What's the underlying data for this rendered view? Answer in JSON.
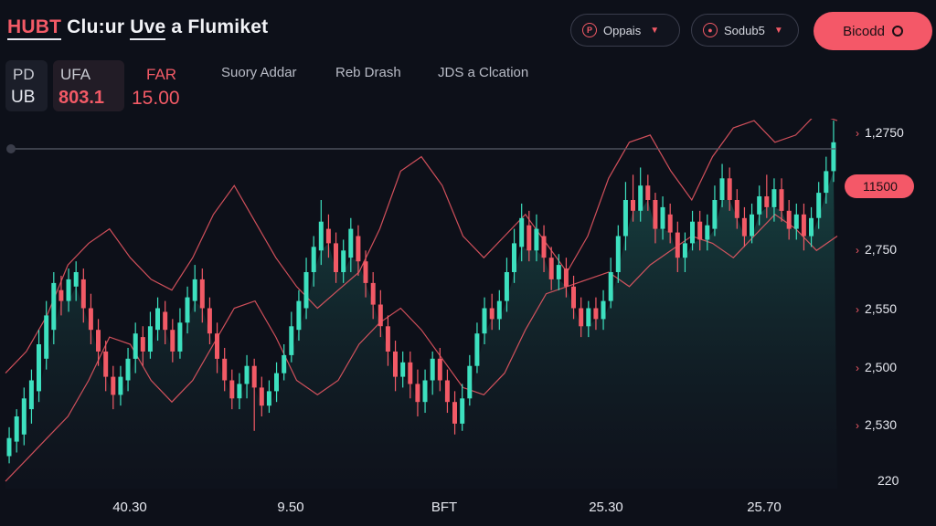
{
  "header": {
    "title_parts": [
      "HUBT",
      "Clu:ur",
      "Uve",
      "a Flumiket"
    ],
    "dropdown1": {
      "label": "Oppais",
      "icon": "p-coin-icon"
    },
    "dropdown2": {
      "label": "Sodub5",
      "icon": "target-icon"
    },
    "primary_button": {
      "label": "Bicodd"
    }
  },
  "stats": [
    {
      "label": "PD",
      "value": "UB"
    },
    {
      "label": "UFA",
      "value": "803.1"
    },
    {
      "label": "FAR",
      "value": "15.00"
    }
  ],
  "tabs": [
    "Suory Addar",
    "Reb Drash",
    "JDS a Clcation"
  ],
  "colors": {
    "background": "#0d1019",
    "accent": "#f45868",
    "up": "#3de0bf",
    "down": "#f25a66"
  },
  "chart_data": {
    "type": "candlestick",
    "title": "",
    "y_tick_labels": [
      "1,2750",
      "11500",
      "2,750",
      "2,550",
      "2,500",
      "2,530",
      "220"
    ],
    "current_price_label": "11500",
    "x_tick_labels": [
      "40.30",
      "9.50",
      "BFT",
      "25.30",
      "25.70"
    ],
    "grid": false,
    "candles": [
      {
        "o": 0.09,
        "c": 0.14,
        "h": 0.17,
        "l": 0.07
      },
      {
        "o": 0.13,
        "c": 0.2,
        "h": 0.22,
        "l": 0.1
      },
      {
        "o": 0.15,
        "c": 0.25,
        "h": 0.28,
        "l": 0.12
      },
      {
        "o": 0.22,
        "c": 0.3,
        "h": 0.33,
        "l": 0.18
      },
      {
        "o": 0.27,
        "c": 0.4,
        "h": 0.44,
        "l": 0.24
      },
      {
        "o": 0.36,
        "c": 0.48,
        "h": 0.52,
        "l": 0.33
      },
      {
        "o": 0.44,
        "c": 0.57,
        "h": 0.6,
        "l": 0.4
      },
      {
        "o": 0.55,
        "c": 0.52,
        "h": 0.59,
        "l": 0.48
      },
      {
        "o": 0.52,
        "c": 0.58,
        "h": 0.61,
        "l": 0.49
      },
      {
        "o": 0.56,
        "c": 0.6,
        "h": 0.63,
        "l": 0.52
      },
      {
        "o": 0.58,
        "c": 0.5,
        "h": 0.61,
        "l": 0.46
      },
      {
        "o": 0.5,
        "c": 0.44,
        "h": 0.54,
        "l": 0.4
      },
      {
        "o": 0.44,
        "c": 0.38,
        "h": 0.47,
        "l": 0.34
      },
      {
        "o": 0.38,
        "c": 0.31,
        "h": 0.41,
        "l": 0.27
      },
      {
        "o": 0.31,
        "c": 0.26,
        "h": 0.34,
        "l": 0.22
      },
      {
        "o": 0.26,
        "c": 0.31,
        "h": 0.34,
        "l": 0.23
      },
      {
        "o": 0.3,
        "c": 0.36,
        "h": 0.39,
        "l": 0.27
      },
      {
        "o": 0.36,
        "c": 0.43,
        "h": 0.46,
        "l": 0.32
      },
      {
        "o": 0.42,
        "c": 0.38,
        "h": 0.45,
        "l": 0.34
      },
      {
        "o": 0.38,
        "c": 0.45,
        "h": 0.49,
        "l": 0.36
      },
      {
        "o": 0.44,
        "c": 0.5,
        "h": 0.53,
        "l": 0.41
      },
      {
        "o": 0.49,
        "c": 0.44,
        "h": 0.52,
        "l": 0.4
      },
      {
        "o": 0.44,
        "c": 0.38,
        "h": 0.47,
        "l": 0.35
      },
      {
        "o": 0.38,
        "c": 0.46,
        "h": 0.5,
        "l": 0.36
      },
      {
        "o": 0.46,
        "c": 0.53,
        "h": 0.56,
        "l": 0.43
      },
      {
        "o": 0.52,
        "c": 0.58,
        "h": 0.62,
        "l": 0.49
      },
      {
        "o": 0.58,
        "c": 0.5,
        "h": 0.61,
        "l": 0.46
      },
      {
        "o": 0.5,
        "c": 0.43,
        "h": 0.53,
        "l": 0.4
      },
      {
        "o": 0.43,
        "c": 0.36,
        "h": 0.46,
        "l": 0.32
      },
      {
        "o": 0.36,
        "c": 0.3,
        "h": 0.39,
        "l": 0.27
      },
      {
        "o": 0.3,
        "c": 0.25,
        "h": 0.33,
        "l": 0.22
      },
      {
        "o": 0.25,
        "c": 0.29,
        "h": 0.32,
        "l": 0.22
      },
      {
        "o": 0.29,
        "c": 0.34,
        "h": 0.37,
        "l": 0.25
      },
      {
        "o": 0.34,
        "c": 0.28,
        "h": 0.36,
        "l": 0.16
      },
      {
        "o": 0.28,
        "c": 0.23,
        "h": 0.31,
        "l": 0.2
      },
      {
        "o": 0.23,
        "c": 0.27,
        "h": 0.3,
        "l": 0.21
      },
      {
        "o": 0.27,
        "c": 0.32,
        "h": 0.35,
        "l": 0.24
      },
      {
        "o": 0.32,
        "c": 0.37,
        "h": 0.4,
        "l": 0.3
      },
      {
        "o": 0.37,
        "c": 0.45,
        "h": 0.49,
        "l": 0.35
      },
      {
        "o": 0.44,
        "c": 0.52,
        "h": 0.55,
        "l": 0.41
      },
      {
        "o": 0.5,
        "c": 0.6,
        "h": 0.64,
        "l": 0.47
      },
      {
        "o": 0.6,
        "c": 0.67,
        "h": 0.7,
        "l": 0.56
      },
      {
        "o": 0.66,
        "c": 0.74,
        "h": 0.8,
        "l": 0.62
      },
      {
        "o": 0.72,
        "c": 0.68,
        "h": 0.76,
        "l": 0.64
      },
      {
        "o": 0.68,
        "c": 0.6,
        "h": 0.71,
        "l": 0.57
      },
      {
        "o": 0.6,
        "c": 0.66,
        "h": 0.69,
        "l": 0.57
      },
      {
        "o": 0.64,
        "c": 0.72,
        "h": 0.75,
        "l": 0.6
      },
      {
        "o": 0.7,
        "c": 0.63,
        "h": 0.73,
        "l": 0.59
      },
      {
        "o": 0.63,
        "c": 0.57,
        "h": 0.66,
        "l": 0.53
      },
      {
        "o": 0.57,
        "c": 0.51,
        "h": 0.6,
        "l": 0.47
      },
      {
        "o": 0.51,
        "c": 0.45,
        "h": 0.55,
        "l": 0.42
      },
      {
        "o": 0.45,
        "c": 0.38,
        "h": 0.48,
        "l": 0.34
      },
      {
        "o": 0.38,
        "c": 0.31,
        "h": 0.41,
        "l": 0.27
      },
      {
        "o": 0.31,
        "c": 0.35,
        "h": 0.38,
        "l": 0.28
      },
      {
        "o": 0.35,
        "c": 0.29,
        "h": 0.38,
        "l": 0.25
      },
      {
        "o": 0.29,
        "c": 0.24,
        "h": 0.33,
        "l": 0.2
      },
      {
        "o": 0.24,
        "c": 0.3,
        "h": 0.33,
        "l": 0.21
      },
      {
        "o": 0.3,
        "c": 0.36,
        "h": 0.38,
        "l": 0.26
      },
      {
        "o": 0.36,
        "c": 0.3,
        "h": 0.39,
        "l": 0.27
      },
      {
        "o": 0.3,
        "c": 0.24,
        "h": 0.33,
        "l": 0.21
      },
      {
        "o": 0.24,
        "c": 0.18,
        "h": 0.27,
        "l": 0.15
      },
      {
        "o": 0.18,
        "c": 0.25,
        "h": 0.29,
        "l": 0.16
      },
      {
        "o": 0.25,
        "c": 0.34,
        "h": 0.37,
        "l": 0.23
      },
      {
        "o": 0.34,
        "c": 0.43,
        "h": 0.46,
        "l": 0.32
      },
      {
        "o": 0.43,
        "c": 0.5,
        "h": 0.53,
        "l": 0.4
      },
      {
        "o": 0.5,
        "c": 0.47,
        "h": 0.54,
        "l": 0.44
      },
      {
        "o": 0.47,
        "c": 0.52,
        "h": 0.55,
        "l": 0.44
      },
      {
        "o": 0.52,
        "c": 0.6,
        "h": 0.64,
        "l": 0.49
      },
      {
        "o": 0.6,
        "c": 0.68,
        "h": 0.72,
        "l": 0.57
      },
      {
        "o": 0.67,
        "c": 0.75,
        "h": 0.79,
        "l": 0.63
      },
      {
        "o": 0.73,
        "c": 0.66,
        "h": 0.77,
        "l": 0.63
      },
      {
        "o": 0.66,
        "c": 0.72,
        "h": 0.76,
        "l": 0.63
      },
      {
        "o": 0.7,
        "c": 0.64,
        "h": 0.73,
        "l": 0.6
      },
      {
        "o": 0.64,
        "c": 0.58,
        "h": 0.67,
        "l": 0.55
      },
      {
        "o": 0.58,
        "c": 0.62,
        "h": 0.65,
        "l": 0.55
      },
      {
        "o": 0.61,
        "c": 0.56,
        "h": 0.64,
        "l": 0.53
      },
      {
        "o": 0.56,
        "c": 0.5,
        "h": 0.59,
        "l": 0.47
      },
      {
        "o": 0.5,
        "c": 0.45,
        "h": 0.53,
        "l": 0.42
      },
      {
        "o": 0.45,
        "c": 0.5,
        "h": 0.52,
        "l": 0.42
      },
      {
        "o": 0.5,
        "c": 0.47,
        "h": 0.53,
        "l": 0.44
      },
      {
        "o": 0.47,
        "c": 0.52,
        "h": 0.55,
        "l": 0.44
      },
      {
        "o": 0.52,
        "c": 0.6,
        "h": 0.64,
        "l": 0.5
      },
      {
        "o": 0.6,
        "c": 0.7,
        "h": 0.73,
        "l": 0.57
      },
      {
        "o": 0.7,
        "c": 0.8,
        "h": 0.85,
        "l": 0.66
      },
      {
        "o": 0.8,
        "c": 0.77,
        "h": 0.87,
        "l": 0.74
      },
      {
        "o": 0.77,
        "c": 0.84,
        "h": 0.89,
        "l": 0.74
      },
      {
        "o": 0.84,
        "c": 0.8,
        "h": 0.87,
        "l": 0.77
      },
      {
        "o": 0.8,
        "c": 0.72,
        "h": 0.82,
        "l": 0.68
      },
      {
        "o": 0.72,
        "c": 0.78,
        "h": 0.81,
        "l": 0.69
      },
      {
        "o": 0.76,
        "c": 0.71,
        "h": 0.79,
        "l": 0.68
      },
      {
        "o": 0.71,
        "c": 0.64,
        "h": 0.74,
        "l": 0.6
      },
      {
        "o": 0.64,
        "c": 0.68,
        "h": 0.71,
        "l": 0.6
      },
      {
        "o": 0.68,
        "c": 0.74,
        "h": 0.77,
        "l": 0.66
      },
      {
        "o": 0.74,
        "c": 0.69,
        "h": 0.77,
        "l": 0.66
      },
      {
        "o": 0.69,
        "c": 0.73,
        "h": 0.76,
        "l": 0.66
      },
      {
        "o": 0.72,
        "c": 0.8,
        "h": 0.84,
        "l": 0.7
      },
      {
        "o": 0.8,
        "c": 0.86,
        "h": 0.9,
        "l": 0.78
      },
      {
        "o": 0.86,
        "c": 0.8,
        "h": 0.89,
        "l": 0.77
      },
      {
        "o": 0.8,
        "c": 0.75,
        "h": 0.83,
        "l": 0.72
      },
      {
        "o": 0.75,
        "c": 0.7,
        "h": 0.78,
        "l": 0.67
      },
      {
        "o": 0.7,
        "c": 0.76,
        "h": 0.79,
        "l": 0.68
      },
      {
        "o": 0.76,
        "c": 0.81,
        "h": 0.84,
        "l": 0.73
      },
      {
        "o": 0.81,
        "c": 0.78,
        "h": 0.87,
        "l": 0.75
      },
      {
        "o": 0.78,
        "c": 0.83,
        "h": 0.86,
        "l": 0.74
      },
      {
        "o": 0.83,
        "c": 0.77,
        "h": 0.86,
        "l": 0.74
      },
      {
        "o": 0.77,
        "c": 0.72,
        "h": 0.8,
        "l": 0.69
      },
      {
        "o": 0.72,
        "c": 0.76,
        "h": 0.79,
        "l": 0.69
      },
      {
        "o": 0.76,
        "c": 0.7,
        "h": 0.79,
        "l": 0.66
      },
      {
        "o": 0.7,
        "c": 0.75,
        "h": 0.78,
        "l": 0.67
      },
      {
        "o": 0.75,
        "c": 0.82,
        "h": 0.85,
        "l": 0.72
      },
      {
        "o": 0.82,
        "c": 0.88,
        "h": 0.92,
        "l": 0.79
      },
      {
        "o": 0.88,
        "c": 0.96,
        "h": 1.02,
        "l": 0.85
      }
    ],
    "upper_band": [
      0.32,
      0.38,
      0.48,
      0.62,
      0.68,
      0.72,
      0.64,
      0.58,
      0.55,
      0.64,
      0.76,
      0.84,
      0.74,
      0.64,
      0.56,
      0.5,
      0.55,
      0.6,
      0.72,
      0.88,
      0.92,
      0.84,
      0.7,
      0.64,
      0.7,
      0.76,
      0.68,
      0.6,
      0.7,
      0.86,
      0.96,
      0.98,
      0.88,
      0.8,
      0.92,
      1.0,
      1.02,
      0.96,
      0.98,
      1.04,
      1.02
    ],
    "lower_band": [
      0.02,
      0.08,
      0.14,
      0.2,
      0.3,
      0.42,
      0.4,
      0.3,
      0.24,
      0.3,
      0.4,
      0.5,
      0.52,
      0.42,
      0.3,
      0.26,
      0.3,
      0.4,
      0.46,
      0.5,
      0.44,
      0.36,
      0.28,
      0.26,
      0.32,
      0.44,
      0.54,
      0.56,
      0.58,
      0.6,
      0.56,
      0.62,
      0.66,
      0.7,
      0.68,
      0.64,
      0.7,
      0.76,
      0.72,
      0.66,
      0.7
    ]
  }
}
